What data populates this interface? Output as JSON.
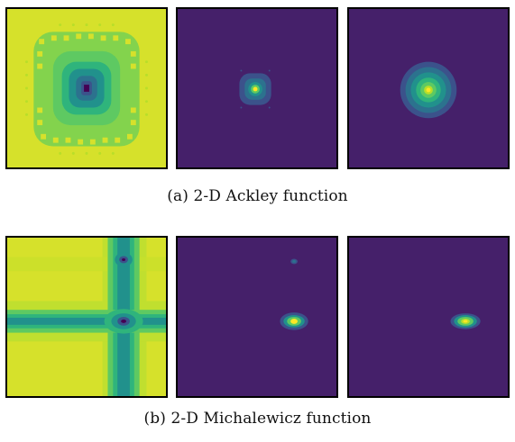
{
  "figure": {
    "row_a": {
      "caption": "(a) 2-D Ackley function",
      "panels": [
        "ackley-landscape",
        "ackley-density-1",
        "ackley-density-2"
      ]
    },
    "row_b": {
      "caption": "(b) 2-D Michalewicz function",
      "panels": [
        "michalewicz-landscape",
        "michalewicz-density-1",
        "michalewicz-density-2"
      ]
    }
  },
  "colors": {
    "viridis_bg": "#45206a",
    "viridis_teal": "#21918c",
    "viridis_green": "#5ec962",
    "viridis_yellow": "#d6e12b",
    "viridis_dark_blue": "#3b528b"
  }
}
